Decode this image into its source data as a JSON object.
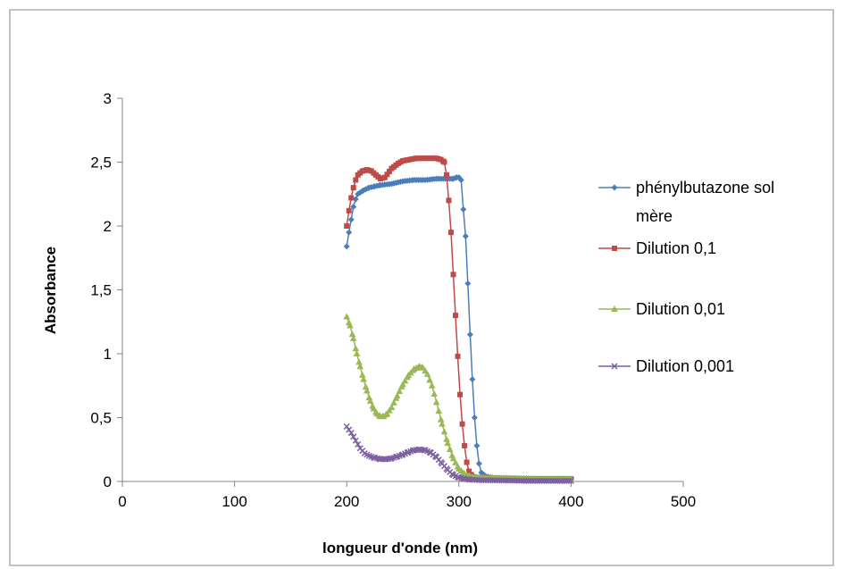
{
  "chart_data": {
    "type": "line",
    "title": "",
    "xlabel": "longueur d'onde (nm)",
    "ylabel": "Absorbance",
    "xlim": [
      0,
      500
    ],
    "ylim": [
      0,
      3
    ],
    "x_ticks": [
      0,
      100,
      200,
      300,
      400,
      500
    ],
    "y_ticks": [
      0,
      0.5,
      1,
      1.5,
      2,
      2.5,
      3
    ],
    "x_tick_labels": [
      "0",
      "100",
      "200",
      "300",
      "400",
      "500"
    ],
    "y_tick_labels": [
      "0",
      "0,5",
      "1",
      "1,5",
      "2",
      "2,5",
      "3"
    ],
    "grid": false,
    "legend_position": "right",
    "series": [
      {
        "name": "phénylbutazone sol mère",
        "color": "#4a7ebb",
        "marker": "diamond",
        "points": [
          [
            200,
            1.84
          ],
          [
            202,
            1.95
          ],
          [
            204,
            2.05
          ],
          [
            206,
            2.15
          ],
          [
            208,
            2.21
          ],
          [
            210,
            2.25
          ],
          [
            215,
            2.28
          ],
          [
            220,
            2.3
          ],
          [
            225,
            2.31
          ],
          [
            230,
            2.32
          ],
          [
            240,
            2.33
          ],
          [
            250,
            2.35
          ],
          [
            260,
            2.36
          ],
          [
            270,
            2.36
          ],
          [
            280,
            2.37
          ],
          [
            290,
            2.37
          ],
          [
            295,
            2.37
          ],
          [
            298,
            2.38
          ],
          [
            300,
            2.38
          ],
          [
            302,
            2.36
          ],
          [
            304,
            2.13
          ],
          [
            306,
            1.92
          ],
          [
            308,
            1.55
          ],
          [
            310,
            1.15
          ],
          [
            312,
            0.8
          ],
          [
            314,
            0.5
          ],
          [
            316,
            0.28
          ],
          [
            318,
            0.14
          ],
          [
            320,
            0.07
          ],
          [
            324,
            0.04
          ],
          [
            330,
            0.03
          ],
          [
            350,
            0.025
          ],
          [
            380,
            0.02
          ],
          [
            400,
            0.02
          ]
        ]
      },
      {
        "name": "Dilution 0,1",
        "color": "#be4b48",
        "marker": "square",
        "points": [
          [
            200,
            2.0
          ],
          [
            202,
            2.12
          ],
          [
            204,
            2.22
          ],
          [
            206,
            2.3
          ],
          [
            208,
            2.36
          ],
          [
            210,
            2.4
          ],
          [
            214,
            2.43
          ],
          [
            218,
            2.44
          ],
          [
            222,
            2.43
          ],
          [
            226,
            2.4
          ],
          [
            230,
            2.37
          ],
          [
            234,
            2.38
          ],
          [
            240,
            2.45
          ],
          [
            246,
            2.49
          ],
          [
            250,
            2.51
          ],
          [
            256,
            2.52
          ],
          [
            262,
            2.53
          ],
          [
            268,
            2.53
          ],
          [
            274,
            2.53
          ],
          [
            280,
            2.53
          ],
          [
            284,
            2.52
          ],
          [
            287,
            2.5
          ],
          [
            289,
            2.4
          ],
          [
            291,
            2.2
          ],
          [
            293,
            1.95
          ],
          [
            295,
            1.62
          ],
          [
            297,
            1.3
          ],
          [
            299,
            0.98
          ],
          [
            301,
            0.68
          ],
          [
            303,
            0.45
          ],
          [
            305,
            0.28
          ],
          [
            307,
            0.15
          ],
          [
            309,
            0.08
          ],
          [
            312,
            0.04
          ],
          [
            316,
            0.03
          ],
          [
            330,
            0.025
          ],
          [
            360,
            0.02
          ],
          [
            400,
            0.02
          ]
        ]
      },
      {
        "name": "Dilution 0,01",
        "color": "#98b954",
        "marker": "triangle",
        "points": [
          [
            200,
            1.29
          ],
          [
            203,
            1.22
          ],
          [
            206,
            1.12
          ],
          [
            209,
            1.0
          ],
          [
            212,
            0.9
          ],
          [
            215,
            0.8
          ],
          [
            218,
            0.71
          ],
          [
            221,
            0.63
          ],
          [
            224,
            0.57
          ],
          [
            227,
            0.53
          ],
          [
            230,
            0.51
          ],
          [
            233,
            0.51
          ],
          [
            236,
            0.53
          ],
          [
            240,
            0.58
          ],
          [
            245,
            0.67
          ],
          [
            250,
            0.76
          ],
          [
            255,
            0.83
          ],
          [
            260,
            0.88
          ],
          [
            265,
            0.9
          ],
          [
            268,
            0.89
          ],
          [
            272,
            0.84
          ],
          [
            276,
            0.75
          ],
          [
            280,
            0.62
          ],
          [
            285,
            0.45
          ],
          [
            290,
            0.3
          ],
          [
            295,
            0.18
          ],
          [
            300,
            0.1
          ],
          [
            305,
            0.06
          ],
          [
            310,
            0.04
          ],
          [
            320,
            0.03
          ],
          [
            340,
            0.025
          ],
          [
            370,
            0.02
          ],
          [
            400,
            0.02
          ]
        ]
      },
      {
        "name": "Dilution 0,001",
        "color": "#7d60a0",
        "marker": "x",
        "points": [
          [
            200,
            0.43
          ],
          [
            204,
            0.38
          ],
          [
            208,
            0.32
          ],
          [
            212,
            0.26
          ],
          [
            216,
            0.22
          ],
          [
            220,
            0.2
          ],
          [
            225,
            0.185
          ],
          [
            230,
            0.175
          ],
          [
            235,
            0.175
          ],
          [
            240,
            0.18
          ],
          [
            245,
            0.195
          ],
          [
            250,
            0.21
          ],
          [
            255,
            0.23
          ],
          [
            260,
            0.245
          ],
          [
            265,
            0.25
          ],
          [
            270,
            0.245
          ],
          [
            275,
            0.225
          ],
          [
            280,
            0.19
          ],
          [
            285,
            0.14
          ],
          [
            290,
            0.09
          ],
          [
            295,
            0.05
          ],
          [
            300,
            0.03
          ],
          [
            305,
            0.02
          ],
          [
            310,
            0.015
          ],
          [
            320,
            0.01
          ],
          [
            340,
            0.008
          ],
          [
            360,
            0.005
          ],
          [
            380,
            0.005
          ],
          [
            400,
            0.005
          ]
        ]
      }
    ]
  }
}
